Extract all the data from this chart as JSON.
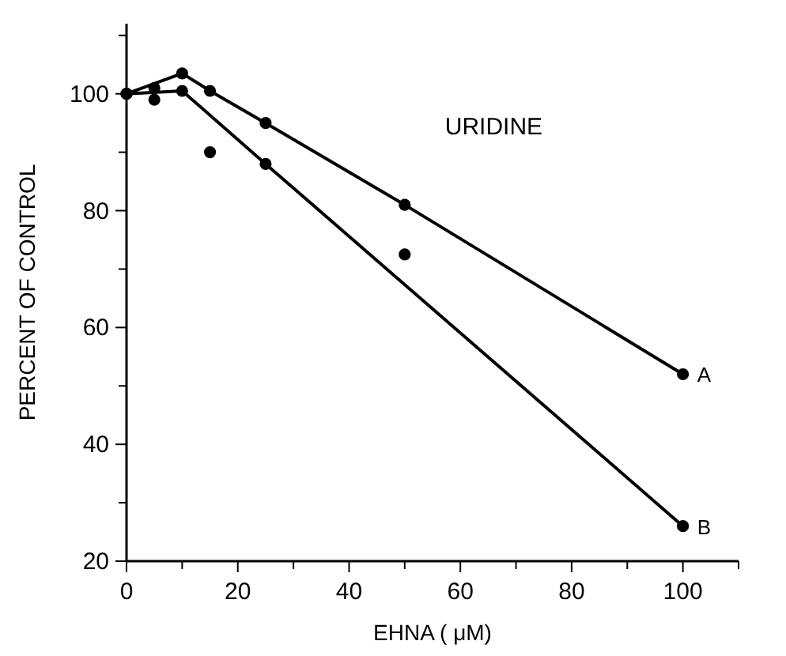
{
  "chart_data": {
    "type": "line",
    "xlabel": "EHNA ( μM)",
    "ylabel": "PERCENT OF CONTROL",
    "annotations": [
      "URIDINE"
    ],
    "xlim": [
      0,
      110
    ],
    "ylim": [
      20,
      112
    ],
    "xticks": [
      0,
      {
        "value": 10,
        "label": null
      },
      20,
      {
        "value": 30,
        "label": null
      },
      40,
      {
        "value": 50,
        "label": null
      },
      60,
      {
        "value": 70,
        "label": null
      },
      80,
      {
        "value": 90,
        "label": null
      },
      100,
      {
        "value": 110,
        "label": null
      }
    ],
    "yticks": [
      20,
      {
        "value": 30,
        "label": null
      },
      40,
      {
        "value": 50,
        "label": null
      },
      60,
      {
        "value": 70,
        "label": null
      },
      80,
      {
        "value": 90,
        "label": null
      },
      100,
      {
        "value": 110,
        "label": null
      }
    ],
    "grid": false,
    "marker": "circle",
    "line_style": "solid",
    "series": [
      {
        "name": "A",
        "color": "#000000",
        "x": [
          0,
          10,
          15,
          25,
          50,
          100
        ],
        "values": [
          100,
          103.5,
          100.5,
          95,
          81,
          52
        ]
      },
      {
        "name": "B",
        "color": "#000000",
        "x": [
          0,
          10,
          25,
          100
        ],
        "values": [
          100,
          100.5,
          88,
          26
        ]
      },
      {
        "type": "scatter",
        "color": "#000000",
        "x": [
          5,
          5,
          15,
          50
        ],
        "values": [
          101,
          99,
          90,
          72.5
        ]
      }
    ]
  }
}
